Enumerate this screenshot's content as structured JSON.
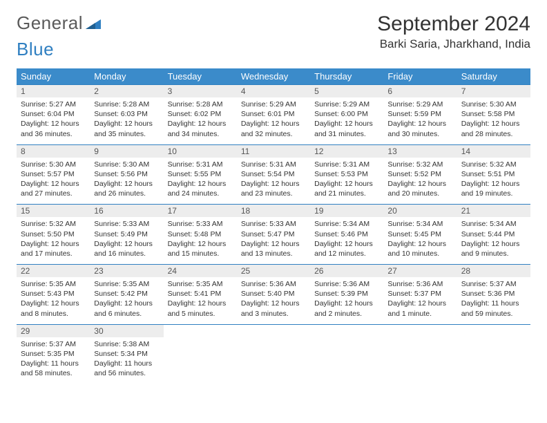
{
  "logo": {
    "text1": "General",
    "text2": "Blue"
  },
  "title": "September 2024",
  "location": "Barki Saria, Jharkhand, India",
  "colors": {
    "header_bg": "#3b8bca",
    "header_text": "#ffffff",
    "daynum_bg": "#ededed",
    "border": "#2f7fc1",
    "logo_gray": "#5a5a5a",
    "logo_blue": "#2f7fc1"
  },
  "weekdays": [
    "Sunday",
    "Monday",
    "Tuesday",
    "Wednesday",
    "Thursday",
    "Friday",
    "Saturday"
  ],
  "days": [
    {
      "n": "1",
      "sr": "5:27 AM",
      "ss": "6:04 PM",
      "dl": "12 hours and 36 minutes."
    },
    {
      "n": "2",
      "sr": "5:28 AM",
      "ss": "6:03 PM",
      "dl": "12 hours and 35 minutes."
    },
    {
      "n": "3",
      "sr": "5:28 AM",
      "ss": "6:02 PM",
      "dl": "12 hours and 34 minutes."
    },
    {
      "n": "4",
      "sr": "5:29 AM",
      "ss": "6:01 PM",
      "dl": "12 hours and 32 minutes."
    },
    {
      "n": "5",
      "sr": "5:29 AM",
      "ss": "6:00 PM",
      "dl": "12 hours and 31 minutes."
    },
    {
      "n": "6",
      "sr": "5:29 AM",
      "ss": "5:59 PM",
      "dl": "12 hours and 30 minutes."
    },
    {
      "n": "7",
      "sr": "5:30 AM",
      "ss": "5:58 PM",
      "dl": "12 hours and 28 minutes."
    },
    {
      "n": "8",
      "sr": "5:30 AM",
      "ss": "5:57 PM",
      "dl": "12 hours and 27 minutes."
    },
    {
      "n": "9",
      "sr": "5:30 AM",
      "ss": "5:56 PM",
      "dl": "12 hours and 26 minutes."
    },
    {
      "n": "10",
      "sr": "5:31 AM",
      "ss": "5:55 PM",
      "dl": "12 hours and 24 minutes."
    },
    {
      "n": "11",
      "sr": "5:31 AM",
      "ss": "5:54 PM",
      "dl": "12 hours and 23 minutes."
    },
    {
      "n": "12",
      "sr": "5:31 AM",
      "ss": "5:53 PM",
      "dl": "12 hours and 21 minutes."
    },
    {
      "n": "13",
      "sr": "5:32 AM",
      "ss": "5:52 PM",
      "dl": "12 hours and 20 minutes."
    },
    {
      "n": "14",
      "sr": "5:32 AM",
      "ss": "5:51 PM",
      "dl": "12 hours and 19 minutes."
    },
    {
      "n": "15",
      "sr": "5:32 AM",
      "ss": "5:50 PM",
      "dl": "12 hours and 17 minutes."
    },
    {
      "n": "16",
      "sr": "5:33 AM",
      "ss": "5:49 PM",
      "dl": "12 hours and 16 minutes."
    },
    {
      "n": "17",
      "sr": "5:33 AM",
      "ss": "5:48 PM",
      "dl": "12 hours and 15 minutes."
    },
    {
      "n": "18",
      "sr": "5:33 AM",
      "ss": "5:47 PM",
      "dl": "12 hours and 13 minutes."
    },
    {
      "n": "19",
      "sr": "5:34 AM",
      "ss": "5:46 PM",
      "dl": "12 hours and 12 minutes."
    },
    {
      "n": "20",
      "sr": "5:34 AM",
      "ss": "5:45 PM",
      "dl": "12 hours and 10 minutes."
    },
    {
      "n": "21",
      "sr": "5:34 AM",
      "ss": "5:44 PM",
      "dl": "12 hours and 9 minutes."
    },
    {
      "n": "22",
      "sr": "5:35 AM",
      "ss": "5:43 PM",
      "dl": "12 hours and 8 minutes."
    },
    {
      "n": "23",
      "sr": "5:35 AM",
      "ss": "5:42 PM",
      "dl": "12 hours and 6 minutes."
    },
    {
      "n": "24",
      "sr": "5:35 AM",
      "ss": "5:41 PM",
      "dl": "12 hours and 5 minutes."
    },
    {
      "n": "25",
      "sr": "5:36 AM",
      "ss": "5:40 PM",
      "dl": "12 hours and 3 minutes."
    },
    {
      "n": "26",
      "sr": "5:36 AM",
      "ss": "5:39 PM",
      "dl": "12 hours and 2 minutes."
    },
    {
      "n": "27",
      "sr": "5:36 AM",
      "ss": "5:37 PM",
      "dl": "12 hours and 1 minute."
    },
    {
      "n": "28",
      "sr": "5:37 AM",
      "ss": "5:36 PM",
      "dl": "11 hours and 59 minutes."
    },
    {
      "n": "29",
      "sr": "5:37 AM",
      "ss": "5:35 PM",
      "dl": "11 hours and 58 minutes."
    },
    {
      "n": "30",
      "sr": "5:38 AM",
      "ss": "5:34 PM",
      "dl": "11 hours and 56 minutes."
    }
  ],
  "labels": {
    "sunrise": "Sunrise: ",
    "sunset": "Sunset: ",
    "daylight": "Daylight: "
  }
}
